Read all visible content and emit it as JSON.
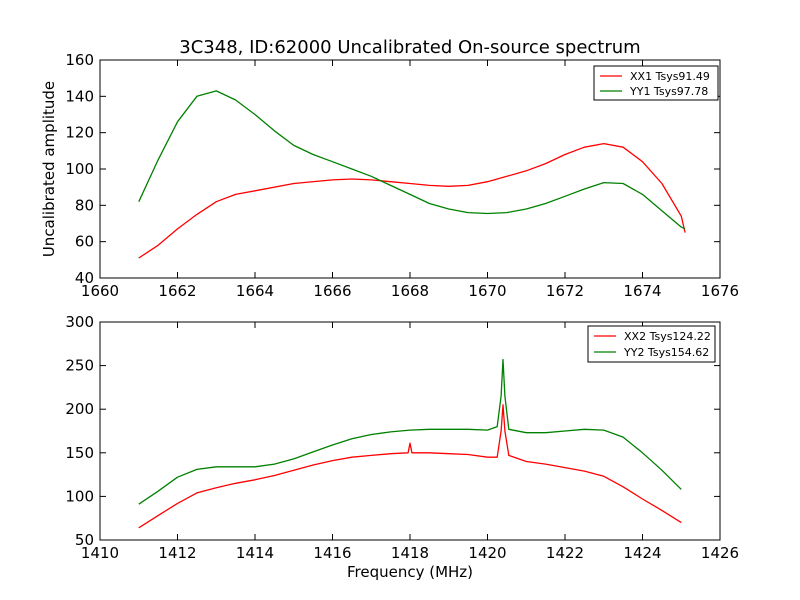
{
  "chart_data": [
    {
      "type": "line",
      "title": "3C348, ID:62000 Uncalibrated On-source spectrum",
      "xlabel": "",
      "ylabel": "Uncalibrated amplitude",
      "xlim": [
        1660,
        1676
      ],
      "ylim": [
        40,
        160
      ],
      "xticks": [
        "1660",
        "1662",
        "1664",
        "1666",
        "1668",
        "1670",
        "1672",
        "1674",
        "1676"
      ],
      "yticks": [
        "40",
        "60",
        "80",
        "100",
        "120",
        "140",
        "160"
      ],
      "legend_position": "top-right",
      "series": [
        {
          "name": "XX1 Tsys91.49",
          "color": "#ff0000",
          "x": [
            1661.0,
            1661.5,
            1662.0,
            1662.5,
            1663.0,
            1663.5,
            1664.0,
            1665.0,
            1666.0,
            1666.5,
            1667.0,
            1667.5,
            1668.0,
            1668.5,
            1669.0,
            1669.5,
            1670.0,
            1670.5,
            1671.0,
            1671.5,
            1672.0,
            1672.5,
            1673.0,
            1673.5,
            1674.0,
            1674.5,
            1675.0,
            1675.1
          ],
          "y": [
            51,
            58,
            67,
            75,
            82,
            86,
            88,
            92,
            94,
            94.5,
            94,
            93,
            92,
            91,
            90.5,
            91,
            93,
            96,
            99,
            103,
            108,
            112,
            114,
            112,
            104,
            92,
            74,
            65
          ]
        },
        {
          "name": "YY1 Tsys97.78",
          "color": "#008000",
          "x": [
            1661.0,
            1661.5,
            1662.0,
            1662.5,
            1663.0,
            1663.5,
            1664.0,
            1664.5,
            1665.0,
            1665.5,
            1666.0,
            1666.5,
            1667.0,
            1667.5,
            1668.0,
            1668.5,
            1669.0,
            1669.5,
            1670.0,
            1670.5,
            1671.0,
            1671.5,
            1672.0,
            1672.5,
            1673.0,
            1673.5,
            1674.0,
            1674.5,
            1675.0,
            1675.1
          ],
          "y": [
            82,
            105,
            126,
            140,
            143,
            138,
            130,
            121,
            113,
            108,
            104,
            100,
            96,
            91,
            86,
            81,
            78,
            76,
            75.5,
            76,
            78,
            81,
            85,
            89,
            92.5,
            92,
            86,
            77,
            68,
            67
          ]
        }
      ]
    },
    {
      "type": "line",
      "title": "",
      "xlabel": "Frequency (MHz)",
      "ylabel": "",
      "xlim": [
        1410,
        1426
      ],
      "ylim": [
        50,
        300
      ],
      "xticks": [
        "1410",
        "1412",
        "1414",
        "1416",
        "1418",
        "1420",
        "1422",
        "1424",
        "1426"
      ],
      "yticks": [
        "50",
        "100",
        "150",
        "200",
        "250",
        "300"
      ],
      "legend_position": "top-right",
      "series": [
        {
          "name": "XX2 Tsys124.22",
          "color": "#ff0000",
          "x": [
            1411.0,
            1411.5,
            1412.0,
            1412.5,
            1413.0,
            1413.5,
            1414.0,
            1414.5,
            1415.0,
            1415.5,
            1416.0,
            1416.5,
            1417.0,
            1417.5,
            1417.95,
            1418.0,
            1418.05,
            1418.5,
            1419.0,
            1419.5,
            1420.0,
            1420.25,
            1420.35,
            1420.4,
            1420.45,
            1420.55,
            1421.0,
            1421.5,
            1422.0,
            1422.5,
            1423.0,
            1423.5,
            1424.0,
            1424.5,
            1425.0
          ],
          "y": [
            64,
            78,
            92,
            104,
            110,
            115,
            119,
            124,
            130,
            136,
            141,
            145,
            147,
            149,
            150,
            161,
            150,
            150,
            149,
            148,
            145,
            145,
            175,
            205,
            175,
            147,
            140,
            137,
            133,
            129,
            123,
            111,
            97,
            84,
            70
          ]
        },
        {
          "name": "YY2 Tsys154.62",
          "color": "#008000",
          "x": [
            1411.0,
            1411.5,
            1412.0,
            1412.5,
            1413.0,
            1413.5,
            1414.0,
            1414.5,
            1415.0,
            1415.5,
            1416.0,
            1416.5,
            1417.0,
            1417.5,
            1418.0,
            1418.5,
            1419.0,
            1419.5,
            1420.0,
            1420.25,
            1420.35,
            1420.4,
            1420.45,
            1420.55,
            1421.0,
            1421.5,
            1422.0,
            1422.5,
            1423.0,
            1423.5,
            1424.0,
            1424.5,
            1425.0
          ],
          "y": [
            91,
            106,
            122,
            131,
            134,
            134,
            134,
            137,
            143,
            151,
            159,
            166,
            171,
            174,
            176,
            177,
            177,
            177,
            176,
            180,
            215,
            257,
            215,
            177,
            173,
            173,
            175,
            177,
            176,
            168,
            150,
            130,
            108
          ]
        }
      ]
    }
  ]
}
